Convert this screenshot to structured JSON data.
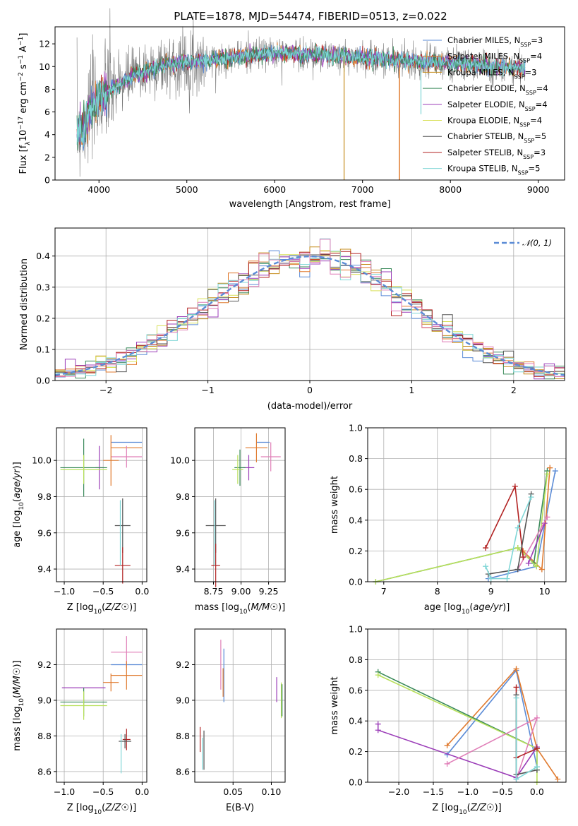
{
  "figure": {
    "title": "PLATE=1878, MJD=54474, FIBERID=0513, z=0.022"
  },
  "colors": {
    "Chabrier MILES": "#5b8bd6",
    "Salpeter MILES": "#e07a2e",
    "Kroupa MILES": "#c58b1a",
    "Chabrier ELODIE": "#3a8a5a",
    "Salpeter ELODIE": "#9b3db8",
    "Kroupa ELODIE": "#d9e05a",
    "Chabrier STELIB": "#555555",
    "Salpeter STELIB": "#b22222",
    "Kroupa STELIB": "#7fd6d6",
    "pink": "#e07fb8",
    "lime": "#b8e05a",
    "normal_curve": "#5b8bd6"
  },
  "chart_data": [
    {
      "id": "spectrum",
      "type": "line",
      "title": "PLATE=1878, MJD=54474, FIBERID=0513, z=0.022",
      "xlabel": "wavelength [Angstrom, rest frame]",
      "ylabel": "Flux [fλ10⁻¹⁷ erg cm⁻² s⁻¹ A⁻¹]",
      "xlim": [
        3500,
        9300
      ],
      "ylim": [
        0,
        13.5
      ],
      "xticks": [
        "4000",
        "5000",
        "6000",
        "7000",
        "8000",
        "9000"
      ],
      "yticks": [
        "0",
        "2",
        "4",
        "6",
        "8",
        "10",
        "12"
      ],
      "legend_position": "top-right",
      "legend": [
        "Chabrier MILES, N_SSP=3",
        "Salpeter MILES, N_SSP=4",
        "Kroupa MILES, N_SSP=3",
        "Chabrier ELODIE, N_SSP=4",
        "Salpeter ELODIE, N_SSP=4",
        "Kroupa ELODIE, N_SSP=4",
        "Chabrier STELIB, N_SSP=5",
        "Salpeter STELIB, N_SSP=3",
        "Kroupa STELIB, N_SSP=5"
      ],
      "data_range": [
        3750,
        8850
      ],
      "continuum": [
        [
          3750,
          4.0
        ],
        [
          3850,
          5.2
        ],
        [
          3950,
          6.8
        ],
        [
          4050,
          7.5
        ],
        [
          4200,
          8.2
        ],
        [
          4400,
          9.2
        ],
        [
          4600,
          9.8
        ],
        [
          4800,
          10.2
        ],
        [
          5000,
          10.4
        ],
        [
          5300,
          10.6
        ],
        [
          5600,
          10.9
        ],
        [
          6000,
          11.2
        ],
        [
          6500,
          11.0
        ],
        [
          7000,
          10.8
        ],
        [
          7500,
          10.5
        ],
        [
          8000,
          10.3
        ],
        [
          8500,
          10.0
        ],
        [
          8850,
          9.8
        ]
      ]
    },
    {
      "id": "residuals",
      "type": "histogram",
      "xlabel": "(data-model)/error",
      "ylabel": "Normed distribution",
      "xlim": [
        -2.5,
        2.5
      ],
      "ylim": [
        0,
        0.49
      ],
      "xticks": [
        "−2",
        "−1",
        "0",
        "1",
        "2"
      ],
      "yticks": [
        "0.0",
        "0.1",
        "0.2",
        "0.3",
        "0.4"
      ],
      "grid": true,
      "legend_position": "top-right",
      "legend": [
        "𝒩(0, 1)"
      ],
      "bin_width": 0.1
    },
    {
      "id": "Z-age",
      "type": "scatter",
      "xlabel": "Z [log10(Z/Z☉)]",
      "ylabel": "age [log10(age/yr)]",
      "xlim": [
        -1.1,
        0.06
      ],
      "ylim": [
        9.33,
        10.18
      ],
      "xticks": [
        "−1.0",
        "−0.5",
        "0.0"
      ],
      "yticks": [
        "9.4",
        "9.6",
        "9.8",
        "10.0"
      ],
      "grid": true,
      "points": [
        {
          "x": -0.2,
          "y": 10.1,
          "xe": 0.2,
          "ye": 0.0,
          "c": "Chabrier MILES"
        },
        {
          "x": -0.2,
          "y": 10.07,
          "xe": 0.2,
          "ye": 0.0,
          "c": "Salpeter MILES"
        },
        {
          "x": -0.2,
          "y": 10.02,
          "xe": 0.2,
          "ye": 0.06,
          "c": "pink"
        },
        {
          "x": -0.4,
          "y": 10.0,
          "xe": 0.1,
          "ye": 0.14,
          "c": "Salpeter MILES"
        },
        {
          "x": -0.55,
          "y": 9.96,
          "xe": 0.05,
          "ye": 0.12,
          "c": "Salpeter ELODIE"
        },
        {
          "x": -0.75,
          "y": 9.96,
          "xe": 0.3,
          "ye": 0.16,
          "c": "Chabrier ELODIE"
        },
        {
          "x": -0.75,
          "y": 9.95,
          "xe": 0.3,
          "ye": 0.08,
          "c": "lime"
        },
        {
          "x": -0.25,
          "y": 9.64,
          "xe": 0.1,
          "ye": 0.15,
          "c": "Chabrier STELIB"
        },
        {
          "x": -0.25,
          "y": 9.42,
          "xe": 0.1,
          "ye": 0.1,
          "c": "Salpeter STELIB"
        },
        {
          "x": -0.28,
          "y": 9.6,
          "xe": 0.0,
          "ye": 0.18,
          "c": "Kroupa STELIB"
        }
      ]
    },
    {
      "id": "mass-age",
      "type": "scatter",
      "xlabel": "mass [log10(M/M☉)]",
      "ylabel": "",
      "xlim": [
        8.58,
        9.4
      ],
      "ylim": [
        9.33,
        10.18
      ],
      "xticks": [
        "8.75",
        "9.00",
        "9.25"
      ],
      "yticks": [
        "9.4",
        "9.6",
        "9.8",
        "10.0"
      ],
      "grid": true,
      "points": [
        {
          "x": 9.2,
          "y": 10.1,
          "xe": 0.06,
          "ye": 0.0,
          "c": "Chabrier MILES"
        },
        {
          "x": 9.14,
          "y": 10.07,
          "xe": 0.1,
          "ye": 0.08,
          "c": "Salpeter MILES"
        },
        {
          "x": 9.27,
          "y": 10.02,
          "xe": 0.09,
          "ye": 0.08,
          "c": "pink"
        },
        {
          "x": 9.07,
          "y": 9.96,
          "xe": 0.05,
          "ye": 0.07,
          "c": "Salpeter ELODIE"
        },
        {
          "x": 8.99,
          "y": 9.96,
          "xe": 0.05,
          "ye": 0.1,
          "c": "Chabrier ELODIE"
        },
        {
          "x": 8.97,
          "y": 9.95,
          "xe": 0.05,
          "ye": 0.08,
          "c": "lime"
        },
        {
          "x": 8.77,
          "y": 9.64,
          "xe": 0.09,
          "ye": 0.15,
          "c": "Chabrier STELIB"
        },
        {
          "x": 8.77,
          "y": 9.42,
          "xe": 0.04,
          "ye": 0.12,
          "c": "Salpeter STELIB"
        },
        {
          "x": 8.76,
          "y": 9.6,
          "xe": 0.0,
          "ye": 0.18,
          "c": "Kroupa STELIB"
        }
      ]
    },
    {
      "id": "age-weight",
      "type": "line",
      "xlabel": "age [log10(age/yr)]",
      "ylabel": "mass weight",
      "xlim": [
        6.7,
        10.4
      ],
      "ylim": [
        0,
        1.0
      ],
      "xticks": [
        "7",
        "8",
        "9",
        "10"
      ],
      "yticks": [
        "0.0",
        "0.2",
        "0.4",
        "0.6",
        "0.8",
        "1.0"
      ],
      "grid": true,
      "series": [
        {
          "c": "Chabrier MILES",
          "pts": [
            [
              8.95,
              0.02
            ],
            [
              9.85,
              0.1
            ],
            [
              10.2,
              0.72
            ]
          ]
        },
        {
          "c": "Salpeter MILES",
          "pts": [
            [
              9.6,
              0.2
            ],
            [
              9.95,
              0.08
            ],
            [
              10.1,
              0.74
            ]
          ]
        },
        {
          "c": "Chabrier ELODIE",
          "pts": [
            [
              6.85,
              0.0
            ],
            [
              9.5,
              0.22
            ],
            [
              9.8,
              0.12
            ],
            [
              10.05,
              0.72
            ]
          ]
        },
        {
          "c": "lime",
          "pts": [
            [
              6.85,
              0.0
            ],
            [
              9.5,
              0.22
            ],
            [
              9.85,
              0.1
            ],
            [
              10.05,
              0.7
            ]
          ]
        },
        {
          "c": "Salpeter ELODIE",
          "pts": [
            [
              9.7,
              0.12
            ],
            [
              10.0,
              0.38
            ]
          ]
        },
        {
          "c": "pink",
          "pts": [
            [
              9.5,
              0.08
            ],
            [
              10.05,
              0.42
            ]
          ]
        },
        {
          "c": "Salpeter STELIB",
          "pts": [
            [
              8.9,
              0.22
            ],
            [
              9.45,
              0.62
            ],
            [
              9.6,
              0.16
            ]
          ]
        },
        {
          "c": "Chabrier STELIB",
          "pts": [
            [
              8.95,
              0.05
            ],
            [
              9.5,
              0.08
            ],
            [
              9.75,
              0.57
            ]
          ]
        },
        {
          "c": "Kroupa STELIB",
          "pts": [
            [
              8.9,
              0.1
            ],
            [
              9.0,
              0.02
            ],
            [
              9.3,
              0.02
            ],
            [
              9.5,
              0.35
            ],
            [
              9.75,
              0.55
            ]
          ]
        }
      ]
    },
    {
      "id": "Z-mass",
      "type": "scatter",
      "xlabel": "Z [log10(Z/Z☉)]",
      "ylabel": "mass [log10(M/M☉)]",
      "xlim": [
        -1.1,
        0.06
      ],
      "ylim": [
        8.54,
        9.4
      ],
      "xticks": [
        "−1.0",
        "−0.5",
        "0.0"
      ],
      "yticks": [
        "8.6",
        "8.8",
        "9.0",
        "9.2"
      ],
      "grid": true,
      "points": [
        {
          "x": -0.2,
          "y": 9.27,
          "xe": 0.2,
          "ye": 0.09,
          "c": "pink"
        },
        {
          "x": -0.2,
          "y": 9.2,
          "xe": 0.2,
          "ye": 0.0,
          "c": "Chabrier MILES"
        },
        {
          "x": -0.2,
          "y": 9.14,
          "xe": 0.2,
          "ye": 0.08,
          "c": "Salpeter MILES"
        },
        {
          "x": -0.4,
          "y": 9.1,
          "xe": 0.1,
          "ye": 0.05,
          "c": "Salpeter MILES"
        },
        {
          "x": -0.75,
          "y": 9.07,
          "xe": 0.28,
          "ye": 0.0,
          "c": "Salpeter ELODIE"
        },
        {
          "x": -0.75,
          "y": 8.99,
          "xe": 0.3,
          "ye": 0.08,
          "c": "Chabrier ELODIE"
        },
        {
          "x": -0.75,
          "y": 8.97,
          "xe": 0.3,
          "ye": 0.08,
          "c": "lime"
        },
        {
          "x": -0.2,
          "y": 8.78,
          "xe": 0.05,
          "ye": 0.06,
          "c": "Salpeter STELIB"
        },
        {
          "x": -0.22,
          "y": 8.77,
          "xe": 0.08,
          "ye": 0.04,
          "c": "Chabrier STELIB"
        },
        {
          "x": -0.27,
          "y": 8.7,
          "xe": 0.0,
          "ye": 0.11,
          "c": "Kroupa STELIB"
        }
      ]
    },
    {
      "id": "EBV-mass",
      "type": "scatter",
      "xlabel": "E(B-V)",
      "ylabel": "",
      "xlim": [
        0.0,
        0.118
      ],
      "ylim": [
        8.54,
        9.4
      ],
      "xticks": [
        "0.05",
        "0.10"
      ],
      "yticks": [
        "8.6",
        "8.8",
        "9.0",
        "9.2"
      ],
      "grid": true,
      "points": [
        {
          "x": 0.034,
          "y": 9.2,
          "xe": 0.0,
          "ye": 0.14,
          "c": "pink"
        },
        {
          "x": 0.038,
          "y": 9.14,
          "xe": 0.0,
          "ye": 0.15,
          "c": "Chabrier MILES"
        },
        {
          "x": 0.037,
          "y": 9.1,
          "xe": 0.0,
          "ye": 0.08,
          "c": "Salpeter MILES"
        },
        {
          "x": 0.107,
          "y": 9.06,
          "xe": 0.0,
          "ye": 0.07,
          "c": "Salpeter ELODIE"
        },
        {
          "x": 0.113,
          "y": 9.0,
          "xe": 0.0,
          "ye": 0.1,
          "c": "lime"
        },
        {
          "x": 0.114,
          "y": 9.0,
          "xe": 0.0,
          "ye": 0.09,
          "c": "Chabrier ELODIE"
        },
        {
          "x": 0.007,
          "y": 8.78,
          "xe": 0.0,
          "ye": 0.07,
          "c": "Salpeter STELIB"
        },
        {
          "x": 0.012,
          "y": 8.72,
          "xe": 0.0,
          "ye": 0.11,
          "c": "Chabrier STELIB"
        },
        {
          "x": 0.01,
          "y": 8.7,
          "xe": 0.0,
          "ye": 0.09,
          "c": "Kroupa STELIB"
        }
      ]
    },
    {
      "id": "Z-weight",
      "type": "line",
      "xlabel": "Z [log10(Z/Z☉)]",
      "ylabel": "mass weight",
      "xlim": [
        -2.45,
        0.42
      ],
      "ylim": [
        0,
        1.0
      ],
      "xticks": [
        "−2.0",
        "−1.5",
        "−1.0",
        "−0.5",
        "0.0"
      ],
      "yticks": [
        "0.0",
        "0.2",
        "0.4",
        "0.6",
        "0.8",
        "1.0"
      ],
      "grid": true,
      "series": [
        {
          "c": "Chabrier MILES",
          "pts": [
            [
              -1.3,
              0.18
            ],
            [
              -0.3,
              0.73
            ],
            [
              0.0,
              0.1
            ]
          ]
        },
        {
          "c": "Salpeter MILES",
          "pts": [
            [
              -1.3,
              0.24
            ],
            [
              -0.3,
              0.74
            ],
            [
              0.0,
              0.22
            ],
            [
              0.3,
              0.02
            ]
          ]
        },
        {
          "c": "Chabrier ELODIE",
          "pts": [
            [
              -2.3,
              0.72
            ],
            [
              0.0,
              0.22
            ],
            [
              0.0,
              0.08
            ]
          ]
        },
        {
          "c": "lime",
          "pts": [
            [
              -2.3,
              0.7
            ],
            [
              0.0,
              0.22
            ],
            [
              0.0,
              0.0
            ]
          ]
        },
        {
          "c": "Salpeter ELODIE",
          "pts": [
            [
              -2.3,
              0.38
            ],
            [
              -2.3,
              0.34
            ],
            [
              -0.3,
              0.03
            ],
            [
              0.0,
              0.23
            ]
          ]
        },
        {
          "c": "pink",
          "pts": [
            [
              -1.3,
              0.12
            ],
            [
              0.0,
              0.42
            ],
            [
              -0.3,
              0.02
            ]
          ]
        },
        {
          "c": "Salpeter STELIB",
          "pts": [
            [
              -0.3,
              0.62
            ],
            [
              -0.3,
              0.16
            ],
            [
              0.0,
              0.22
            ]
          ]
        },
        {
          "c": "Chabrier STELIB",
          "pts": [
            [
              -0.3,
              0.57
            ],
            [
              -0.3,
              0.05
            ],
            [
              0.0,
              0.08
            ]
          ]
        },
        {
          "c": "Kroupa STELIB",
          "pts": [
            [
              -0.3,
              0.55
            ],
            [
              -0.3,
              0.02
            ],
            [
              0.0,
              0.1
            ]
          ]
        }
      ]
    }
  ]
}
